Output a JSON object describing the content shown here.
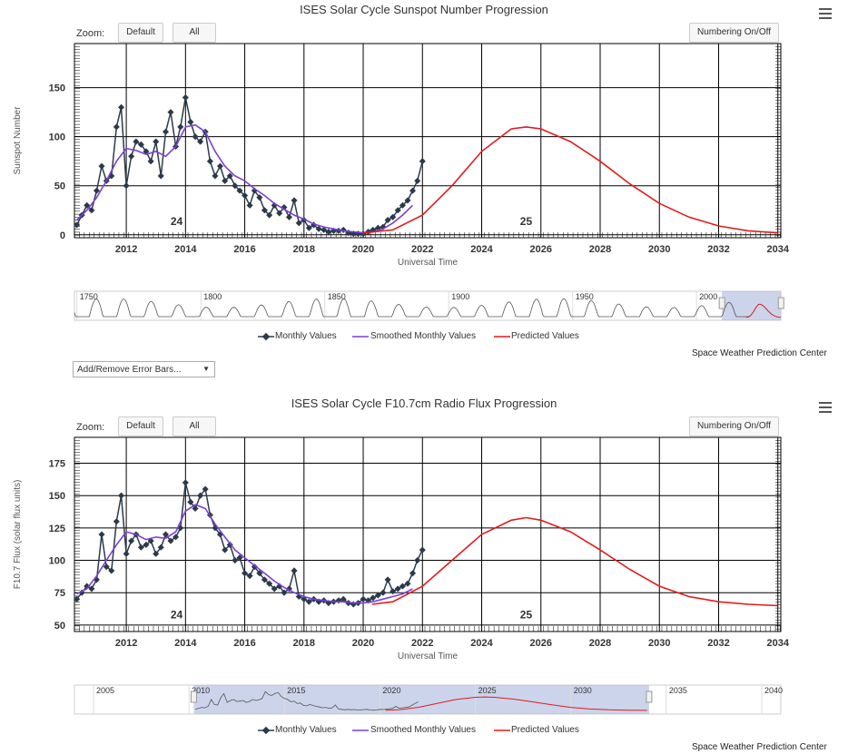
{
  "colors": {
    "monthly": "#2b3a4a",
    "smoothed": "#7b3fd6",
    "predicted": "#e31a1c",
    "grid": "#000000",
    "navFill": "#a9b8dc"
  },
  "zoom_label": "Zoom:",
  "buttons": {
    "default": "Default",
    "all": "All",
    "numbering": "Numbering On/Off"
  },
  "legend": {
    "monthly": "Monthly Values",
    "smoothed": "Smoothed Monthly Values",
    "predicted": "Predicted Values"
  },
  "credit": "Space Weather Prediction Center",
  "error_bars_select": "Add/Remove Error Bars...",
  "menu_icon": "hamburger-menu-icon",
  "chart_data": [
    {
      "type": "line",
      "title": "ISES Solar Cycle Sunspot Number Progression",
      "xlabel": "Universal Time",
      "ylabel": "Sunspot Number",
      "xlim": [
        2010.25,
        2034.1
      ],
      "ylim": [
        -3,
        195
      ],
      "x_ticks": [
        2012,
        2014,
        2016,
        2018,
        2020,
        2022,
        2024,
        2026,
        2028,
        2030,
        2032,
        2034
      ],
      "y_ticks": [
        0,
        50,
        100,
        150
      ],
      "cycle_labels": [
        {
          "text": "24",
          "x": 2013.7,
          "y": 10
        },
        {
          "text": "25",
          "x": 2025.5,
          "y": 10
        }
      ],
      "series": [
        {
          "name": "Monthly Values",
          "x": [
            2010.33,
            2010.5,
            2010.67,
            2010.83,
            2011.0,
            2011.17,
            2011.33,
            2011.5,
            2011.67,
            2011.83,
            2012.0,
            2012.17,
            2012.33,
            2012.5,
            2012.67,
            2012.83,
            2013.0,
            2013.17,
            2013.33,
            2013.5,
            2013.67,
            2013.83,
            2014.0,
            2014.17,
            2014.33,
            2014.5,
            2014.67,
            2014.83,
            2015.0,
            2015.17,
            2015.33,
            2015.5,
            2015.67,
            2015.83,
            2016.0,
            2016.17,
            2016.33,
            2016.5,
            2016.67,
            2016.83,
            2017.0,
            2017.17,
            2017.33,
            2017.5,
            2017.67,
            2017.83,
            2018.0,
            2018.17,
            2018.33,
            2018.5,
            2018.67,
            2018.83,
            2019.0,
            2019.17,
            2019.33,
            2019.5,
            2019.67,
            2019.83,
            2020.0,
            2020.17,
            2020.33,
            2020.5,
            2020.67,
            2020.83,
            2021.0,
            2021.17,
            2021.33,
            2021.5,
            2021.67,
            2021.83,
            2022.0
          ],
          "y": [
            10,
            20,
            30,
            25,
            45,
            70,
            55,
            60,
            110,
            130,
            50,
            80,
            95,
            92,
            85,
            75,
            95,
            60,
            105,
            125,
            90,
            110,
            140,
            115,
            100,
            95,
            105,
            75,
            60,
            70,
            55,
            60,
            50,
            45,
            40,
            30,
            45,
            38,
            25,
            20,
            30,
            22,
            28,
            18,
            35,
            12,
            15,
            7,
            10,
            6,
            5,
            3,
            4,
            4,
            5,
            2,
            1,
            1,
            1,
            3,
            5,
            7,
            8,
            15,
            18,
            25,
            30,
            35,
            45,
            55,
            75
          ]
        },
        {
          "name": "Smoothed Monthly Values",
          "x": [
            2010.33,
            2010.67,
            2011.0,
            2011.33,
            2011.67,
            2012.0,
            2012.33,
            2012.67,
            2013.0,
            2013.33,
            2013.67,
            2014.0,
            2014.33,
            2014.67,
            2015.0,
            2015.33,
            2015.67,
            2016.0,
            2016.33,
            2016.67,
            2017.0,
            2017.33,
            2017.67,
            2018.0,
            2018.33,
            2018.67,
            2019.0,
            2019.33,
            2019.67,
            2020.0,
            2020.33,
            2020.67,
            2021.0,
            2021.33,
            2021.67
          ],
          "y": [
            15,
            25,
            38,
            55,
            75,
            88,
            86,
            82,
            85,
            80,
            90,
            110,
            112,
            105,
            85,
            70,
            60,
            55,
            47,
            40,
            32,
            26,
            20,
            16,
            11,
            8,
            6,
            4,
            3,
            2,
            3,
            6,
            12,
            20,
            30
          ]
        },
        {
          "name": "Predicted Values",
          "x": [
            2020.0,
            2021.0,
            2022.0,
            2023.0,
            2024.0,
            2025.0,
            2025.5,
            2026.0,
            2027.0,
            2028.0,
            2029.0,
            2030.0,
            2031.0,
            2032.0,
            2033.0,
            2034.0
          ],
          "y": [
            2,
            5,
            20,
            50,
            85,
            108,
            110,
            108,
            95,
            75,
            52,
            32,
            18,
            9,
            4,
            2
          ]
        }
      ],
      "navigator": {
        "x_ticks": [
          1750,
          1800,
          1850,
          1900,
          1950,
          2000
        ],
        "xlim": [
          1749,
          2034
        ]
      }
    },
    {
      "type": "line",
      "title": "ISES Solar Cycle F10.7cm Radio Flux Progression",
      "xlabel": "Universal Time",
      "ylabel": "F10.7 Flux (solar flux units)",
      "xlim": [
        2010.25,
        2034.1
      ],
      "ylim": [
        45,
        195
      ],
      "x_ticks": [
        2012,
        2014,
        2016,
        2018,
        2020,
        2022,
        2024,
        2026,
        2028,
        2030,
        2032,
        2034
      ],
      "y_ticks": [
        50,
        75,
        100,
        125,
        150,
        175
      ],
      "cycle_labels": [
        {
          "text": "24",
          "x": 2013.7,
          "y": 55
        },
        {
          "text": "25",
          "x": 2025.5,
          "y": 55
        }
      ],
      "series": [
        {
          "name": "Monthly Values",
          "x": [
            2010.33,
            2010.5,
            2010.67,
            2010.83,
            2011.0,
            2011.17,
            2011.33,
            2011.5,
            2011.67,
            2011.83,
            2012.0,
            2012.17,
            2012.33,
            2012.5,
            2012.67,
            2012.83,
            2013.0,
            2013.17,
            2013.33,
            2013.5,
            2013.67,
            2013.83,
            2014.0,
            2014.17,
            2014.33,
            2014.5,
            2014.67,
            2014.83,
            2015.0,
            2015.17,
            2015.33,
            2015.5,
            2015.67,
            2015.83,
            2016.0,
            2016.17,
            2016.33,
            2016.5,
            2016.67,
            2016.83,
            2017.0,
            2017.17,
            2017.33,
            2017.5,
            2017.67,
            2017.83,
            2018.0,
            2018.17,
            2018.33,
            2018.5,
            2018.67,
            2018.83,
            2019.0,
            2019.17,
            2019.33,
            2019.5,
            2019.67,
            2019.83,
            2020.0,
            2020.17,
            2020.33,
            2020.5,
            2020.67,
            2020.83,
            2021.0,
            2021.17,
            2021.33,
            2021.5,
            2021.67,
            2021.83,
            2022.0
          ],
          "y": [
            70,
            75,
            80,
            78,
            85,
            120,
            95,
            92,
            130,
            150,
            105,
            115,
            120,
            110,
            112,
            115,
            105,
            110,
            120,
            115,
            118,
            125,
            160,
            145,
            140,
            150,
            155,
            135,
            125,
            120,
            108,
            112,
            100,
            102,
            90,
            88,
            95,
            90,
            85,
            82,
            78,
            80,
            75,
            78,
            92,
            72,
            70,
            68,
            70,
            68,
            69,
            67,
            68,
            69,
            70,
            67,
            66,
            67,
            70,
            69,
            71,
            73,
            75,
            85,
            76,
            78,
            80,
            82,
            90,
            100,
            108
          ]
        },
        {
          "name": "Smoothed Monthly Values",
          "x": [
            2010.33,
            2010.67,
            2011.0,
            2011.33,
            2011.67,
            2012.0,
            2012.33,
            2012.67,
            2013.0,
            2013.33,
            2013.67,
            2014.0,
            2014.33,
            2014.67,
            2015.0,
            2015.33,
            2015.67,
            2016.0,
            2016.33,
            2016.67,
            2017.0,
            2017.33,
            2017.67,
            2018.0,
            2018.33,
            2018.67,
            2019.0,
            2019.33,
            2019.67,
            2020.0,
            2020.33,
            2020.67,
            2021.0,
            2021.33,
            2021.67
          ],
          "y": [
            74,
            78,
            88,
            100,
            112,
            122,
            120,
            116,
            118,
            117,
            122,
            138,
            143,
            140,
            128,
            118,
            108,
            102,
            96,
            90,
            84,
            79,
            75,
            72,
            70,
            69,
            68,
            68,
            67,
            67,
            68,
            70,
            72,
            74,
            78
          ]
        },
        {
          "name": "Predicted Values",
          "x": [
            2020.3,
            2021.0,
            2022.0,
            2023.0,
            2024.0,
            2025.0,
            2025.5,
            2026.0,
            2027.0,
            2028.0,
            2029.0,
            2030.0,
            2031.0,
            2032.0,
            2033.0,
            2034.0
          ],
          "y": [
            66,
            68,
            80,
            100,
            120,
            131,
            133,
            131,
            122,
            108,
            93,
            80,
            72,
            68,
            66,
            65
          ]
        }
      ],
      "navigator": {
        "x_ticks": [
          2005,
          2010,
          2015,
          2020,
          2025,
          2030,
          2035,
          2040
        ],
        "xlim": [
          2004,
          2041
        ]
      }
    }
  ]
}
